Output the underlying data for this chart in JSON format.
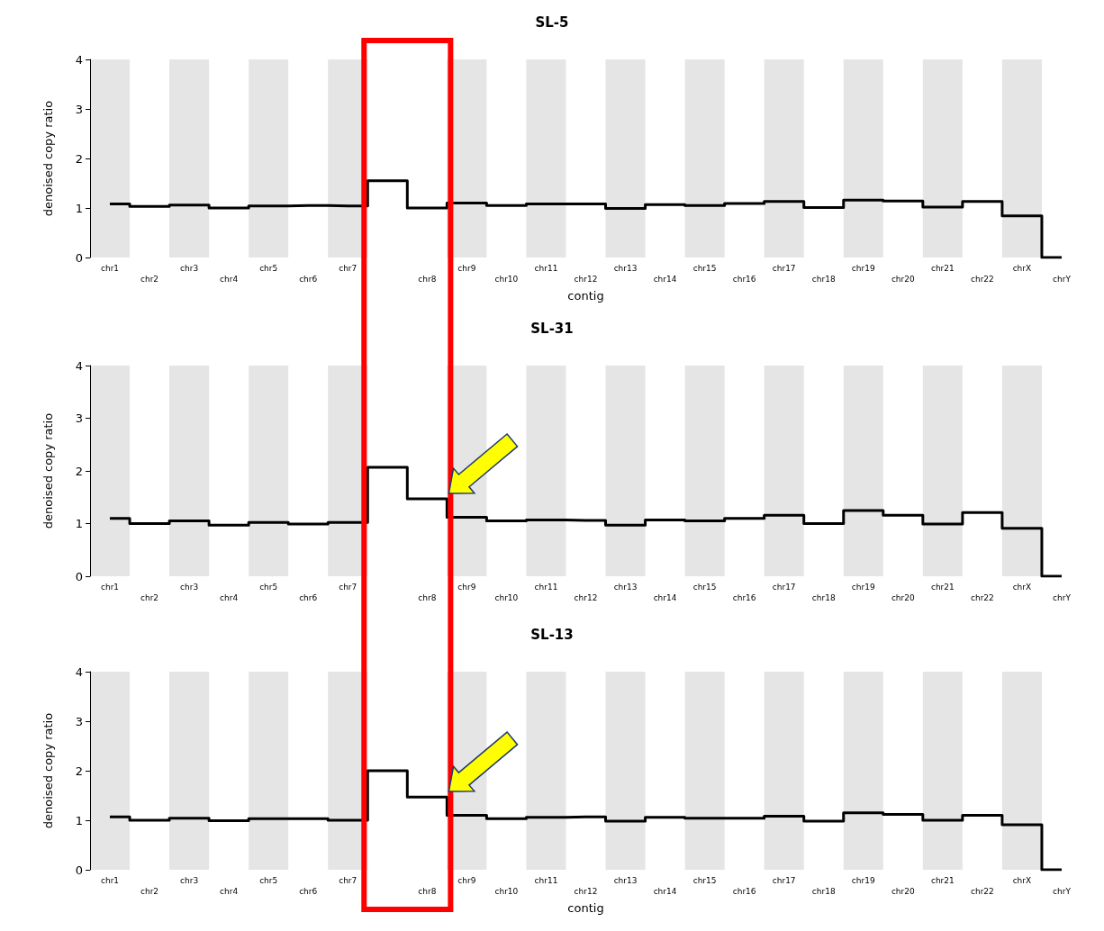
{
  "chart_data": [
    {
      "type": "step",
      "title": "SL-5",
      "xlabel": "contig",
      "ylabel": "denoised copy ratio",
      "categories": [
        "chr1",
        "chr2",
        "chr3",
        "chr4",
        "chr5",
        "chr6",
        "chr7",
        null,
        "chr8",
        "chr9",
        "chr10",
        "chr11",
        "chr12",
        "chr13",
        "chr14",
        "chr15",
        "chr16",
        "chr17",
        "chr18",
        "chr19",
        "chr20",
        "chr21",
        "chr22",
        "chrX",
        "chrY"
      ],
      "series": [
        {
          "color": "#000000",
          "values": [
            1.08,
            1.03,
            1.06,
            1.0,
            1.04,
            1.05,
            1.04,
            1.55,
            1.0,
            1.1,
            1.05,
            1.08,
            1.08,
            0.99,
            1.07,
            1.05,
            1.09,
            1.13,
            1.01,
            1.16,
            1.14,
            1.02,
            1.13,
            0.84,
            0.0
          ]
        }
      ],
      "ylim": [
        0,
        4
      ],
      "yticks": [
        0,
        1,
        2,
        3,
        4
      ],
      "grid": false,
      "line_style": "solid",
      "bands": [
        {
          "axis": "x",
          "from": "chr1",
          "to": "chr1",
          "color": "#e5e5e5"
        },
        {
          "axis": "x",
          "from": "chr3",
          "to": "chr3",
          "color": "#e5e5e5"
        },
        {
          "axis": "x",
          "from": "chr5",
          "to": "chr5",
          "color": "#e5e5e5"
        },
        {
          "axis": "x",
          "from": "chr7",
          "to": "chr7",
          "color": "#e5e5e5"
        },
        {
          "axis": "x",
          "from": "chr9",
          "to": "chr9",
          "color": "#e5e5e5"
        },
        {
          "axis": "x",
          "from": "chr11",
          "to": "chr11",
          "color": "#e5e5e5"
        },
        {
          "axis": "x",
          "from": "chr13",
          "to": "chr13",
          "color": "#e5e5e5"
        },
        {
          "axis": "x",
          "from": "chr15",
          "to": "chr15",
          "color": "#e5e5e5"
        },
        {
          "axis": "x",
          "from": "chr17",
          "to": "chr17",
          "color": "#e5e5e5"
        },
        {
          "axis": "x",
          "from": "chr19",
          "to": "chr19",
          "color": "#e5e5e5"
        },
        {
          "axis": "x",
          "from": "chr21",
          "to": "chr21",
          "color": "#e5e5e5"
        },
        {
          "axis": "x",
          "from": "chrX",
          "to": "chrX",
          "color": "#e5e5e5"
        }
      ]
    },
    {
      "type": "step",
      "title": "SL-31",
      "ylabel": "denoised copy ratio",
      "categories": [
        "chr1",
        "chr2",
        "chr3",
        "chr4",
        "chr5",
        "chr6",
        "chr7",
        null,
        "chr8",
        "chr9",
        "chr10",
        "chr11",
        "chr12",
        "chr13",
        "chr14",
        "chr15",
        "chr16",
        "chr17",
        "chr18",
        "chr19",
        "chr20",
        "chr21",
        "chr22",
        "chrX",
        "chrY"
      ],
      "series": [
        {
          "color": "#000000",
          "values": [
            1.1,
            1.0,
            1.05,
            0.97,
            1.02,
            0.99,
            1.02,
            2.07,
            1.47,
            1.12,
            1.05,
            1.07,
            1.06,
            0.97,
            1.07,
            1.05,
            1.1,
            1.16,
            1.0,
            1.25,
            1.16,
            0.99,
            1.21,
            0.91,
            0.0
          ]
        }
      ],
      "ylim": [
        0,
        4
      ],
      "yticks": [
        0,
        1,
        2,
        3,
        4
      ],
      "grid": false,
      "line_style": "solid",
      "bands": [
        {
          "axis": "x",
          "from": "chr1",
          "to": "chr1",
          "color": "#e5e5e5"
        },
        {
          "axis": "x",
          "from": "chr3",
          "to": "chr3",
          "color": "#e5e5e5"
        },
        {
          "axis": "x",
          "from": "chr5",
          "to": "chr5",
          "color": "#e5e5e5"
        },
        {
          "axis": "x",
          "from": "chr7",
          "to": "chr7",
          "color": "#e5e5e5"
        },
        {
          "axis": "x",
          "from": "chr9",
          "to": "chr9",
          "color": "#e5e5e5"
        },
        {
          "axis": "x",
          "from": "chr11",
          "to": "chr11",
          "color": "#e5e5e5"
        },
        {
          "axis": "x",
          "from": "chr13",
          "to": "chr13",
          "color": "#e5e5e5"
        },
        {
          "axis": "x",
          "from": "chr15",
          "to": "chr15",
          "color": "#e5e5e5"
        },
        {
          "axis": "x",
          "from": "chr17",
          "to": "chr17",
          "color": "#e5e5e5"
        },
        {
          "axis": "x",
          "from": "chr19",
          "to": "chr19",
          "color": "#e5e5e5"
        },
        {
          "axis": "x",
          "from": "chr21",
          "to": "chr21",
          "color": "#e5e5e5"
        },
        {
          "axis": "x",
          "from": "chrX",
          "to": "chrX",
          "color": "#e5e5e5"
        }
      ]
    },
    {
      "type": "step",
      "title": "SL-13",
      "xlabel": "contig",
      "ylabel": "denoised copy ratio",
      "categories": [
        "chr1",
        "chr2",
        "chr3",
        "chr4",
        "chr5",
        "chr6",
        "chr7",
        null,
        "chr8",
        "chr9",
        "chr10",
        "chr11",
        "chr12",
        "chr13",
        "chr14",
        "chr15",
        "chr16",
        "chr17",
        "chr18",
        "chr19",
        "chr20",
        "chr21",
        "chr22",
        "chrX",
        "chrY"
      ],
      "series": [
        {
          "color": "#000000",
          "values": [
            1.07,
            1.0,
            1.04,
            0.99,
            1.03,
            1.03,
            1.0,
            2.0,
            1.47,
            1.1,
            1.03,
            1.06,
            1.07,
            0.98,
            1.06,
            1.04,
            1.04,
            1.08,
            0.98,
            1.15,
            1.12,
            1.0,
            1.1,
            0.91,
            0.0
          ]
        }
      ],
      "ylim": [
        0,
        4
      ],
      "yticks": [
        0,
        1,
        2,
        3,
        4
      ],
      "grid": false,
      "line_style": "solid",
      "bands": [
        {
          "axis": "x",
          "from": "chr1",
          "to": "chr1",
          "color": "#e5e5e5"
        },
        {
          "axis": "x",
          "from": "chr3",
          "to": "chr3",
          "color": "#e5e5e5"
        },
        {
          "axis": "x",
          "from": "chr5",
          "to": "chr5",
          "color": "#e5e5e5"
        },
        {
          "axis": "x",
          "from": "chr7",
          "to": "chr7",
          "color": "#e5e5e5"
        },
        {
          "axis": "x",
          "from": "chr9",
          "to": "chr9",
          "color": "#e5e5e5"
        },
        {
          "axis": "x",
          "from": "chr11",
          "to": "chr11",
          "color": "#e5e5e5"
        },
        {
          "axis": "x",
          "from": "chr13",
          "to": "chr13",
          "color": "#e5e5e5"
        },
        {
          "axis": "x",
          "from": "chr15",
          "to": "chr15",
          "color": "#e5e5e5"
        },
        {
          "axis": "x",
          "from": "chr17",
          "to": "chr17",
          "color": "#e5e5e5"
        },
        {
          "axis": "x",
          "from": "chr19",
          "to": "chr19",
          "color": "#e5e5e5"
        },
        {
          "axis": "x",
          "from": "chr21",
          "to": "chr21",
          "color": "#e5e5e5"
        },
        {
          "axis": "x",
          "from": "chrX",
          "to": "chrX",
          "color": "#e5e5e5"
        }
      ]
    }
  ]
}
